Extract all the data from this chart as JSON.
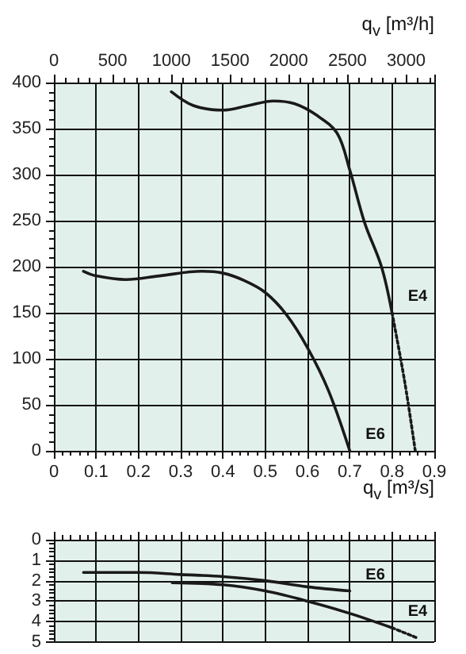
{
  "chart_data": [
    {
      "type": "line",
      "xlabel": "q$_{v}$ [m³/s]",
      "x2label": "q$_{v}$ [m³/h]",
      "xlim": [
        0,
        0.9
      ],
      "xticks": [
        0,
        0.1,
        0.2,
        0.3,
        0.4,
        0.5,
        0.6,
        0.7,
        0.8,
        0.9
      ],
      "x2lim": [
        0,
        3240
      ],
      "x2ticks": [
        0,
        500,
        1000,
        1500,
        2000,
        2500,
        3000
      ],
      "ylim": [
        0,
        400
      ],
      "yticks": [
        0,
        50,
        100,
        150,
        200,
        250,
        300,
        350,
        400
      ],
      "grid": true,
      "marker": "none",
      "series": [
        {
          "name": "E4",
          "color": "#1a1a1a",
          "line_style": "solid",
          "x": [
            0.278,
            0.33,
            0.4,
            0.46,
            0.52,
            0.57,
            0.62,
            0.67,
            0.7,
            0.735,
            0.775,
            0.8
          ],
          "values": [
            390,
            375,
            370,
            375,
            380,
            377,
            365,
            345,
            305,
            248,
            200,
            150
          ]
        },
        {
          "color": "#1a1a1a",
          "line_style": "dotted",
          "x": [
            0.8,
            0.83,
            0.855
          ],
          "values": [
            150,
            75,
            0
          ]
        },
        {
          "name": "E6",
          "color": "#1a1a1a",
          "line_style": "solid",
          "x": [
            0.07,
            0.1,
            0.17,
            0.25,
            0.35,
            0.4,
            0.45,
            0.5,
            0.55,
            0.6,
            0.65,
            0.7
          ],
          "values": [
            195,
            190,
            186,
            190,
            195,
            193,
            185,
            172,
            148,
            112,
            65,
            0
          ]
        }
      ]
    },
    {
      "type": "line",
      "xlim": [
        0,
        0.9
      ],
      "xticks": [
        0,
        0.1,
        0.2,
        0.3,
        0.4,
        0.5,
        0.6,
        0.7,
        0.8,
        0.9
      ],
      "ylim": [
        5,
        0
      ],
      "yticks": [
        0,
        1,
        2,
        3,
        4,
        5
      ],
      "grid": true,
      "marker": "none",
      "tick_labels": "y",
      "series": [
        {
          "name": "E6",
          "color": "#1a1a1a",
          "line_style": "solid",
          "x": [
            0.07,
            0.2,
            0.3,
            0.4,
            0.5,
            0.6,
            0.7
          ],
          "values": [
            1.6,
            1.6,
            1.7,
            1.8,
            2.0,
            2.3,
            2.5
          ]
        },
        {
          "name": "E4",
          "color": "#1a1a1a",
          "line_style": "solid",
          "x": [
            0.28,
            0.4,
            0.5,
            0.6,
            0.7,
            0.8
          ],
          "values": [
            2.1,
            2.2,
            2.5,
            3.0,
            3.6,
            4.3
          ]
        },
        {
          "color": "#1a1a1a",
          "line_style": "dotted",
          "x": [
            0.8,
            0.86
          ],
          "values": [
            4.3,
            4.8
          ]
        }
      ]
    }
  ]
}
